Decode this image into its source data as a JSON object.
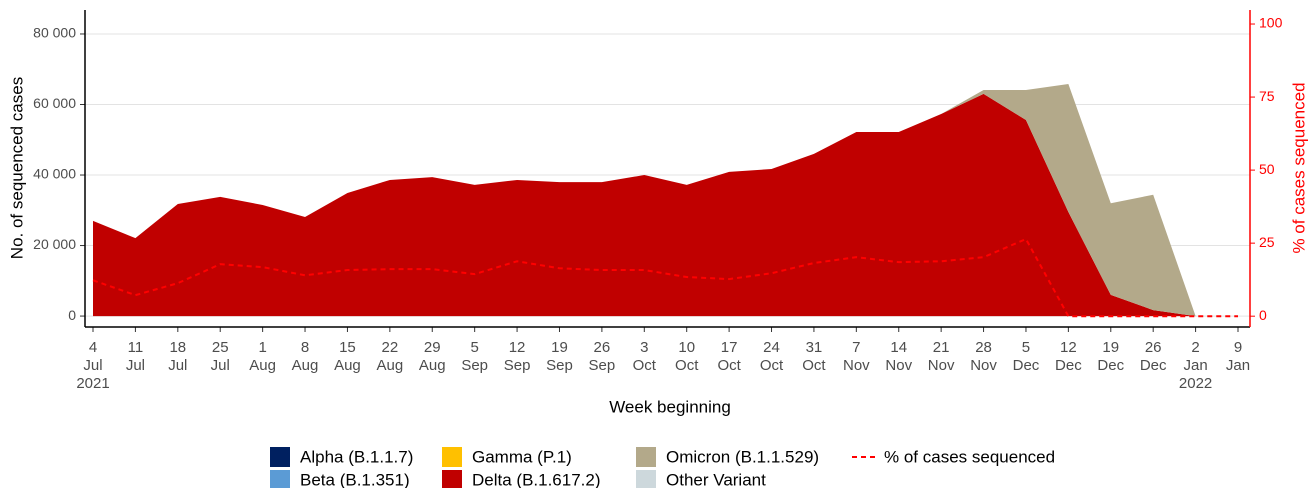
{
  "chart_data": {
    "type": "area",
    "stacked": true,
    "xlabel": "Week beginning",
    "ylabel": "No. of sequenced cases",
    "y2label": "% of cases sequenced",
    "categories": [
      "4 Jul 2021",
      "11 Jul",
      "18 Jul",
      "25 Jul",
      "1 Aug",
      "8 Aug",
      "15 Aug",
      "22 Aug",
      "29 Aug",
      "5 Sep",
      "12 Sep",
      "19 Sep",
      "26 Sep",
      "3 Oct",
      "10 Oct",
      "17 Oct",
      "24 Oct",
      "31 Oct",
      "7 Nov",
      "14 Nov",
      "21 Nov",
      "28 Nov",
      "5 Dec",
      "12 Dec",
      "19 Dec",
      "26 Dec",
      "2 Jan 2022",
      "9 Jan"
    ],
    "ylim": [
      -3100,
      86800
    ],
    "yticks": [
      {
        "value": 0,
        "label": "0"
      },
      {
        "value": 20000,
        "label": "20 000"
      },
      {
        "value": 40000,
        "label": "40 000"
      },
      {
        "value": 60000,
        "label": "60 000"
      },
      {
        "value": 80000,
        "label": "80 000"
      }
    ],
    "y2lim": [
      -3.7,
      104.8
    ],
    "y2ticks": [
      0,
      25,
      50,
      75,
      100
    ],
    "y2color": "#ff0000",
    "grid": true,
    "series": [
      {
        "name": "Alpha (B.1.1.7)",
        "color": "#002060",
        "values": [
          0,
          0,
          0,
          0,
          0,
          0,
          0,
          0,
          0,
          0,
          0,
          0,
          0,
          0,
          0,
          0,
          0,
          0,
          0,
          0,
          0,
          0,
          0,
          0,
          0,
          0,
          0,
          null
        ]
      },
      {
        "name": "Beta (B.1.351)",
        "color": "#5b9bd5",
        "values": [
          0,
          0,
          0,
          0,
          0,
          0,
          0,
          0,
          0,
          0,
          0,
          0,
          0,
          0,
          0,
          0,
          0,
          0,
          0,
          0,
          0,
          0,
          0,
          0,
          0,
          0,
          0,
          null
        ]
      },
      {
        "name": "Gamma (P.1)",
        "color": "#ffc000",
        "values": [
          0,
          0,
          0,
          0,
          0,
          0,
          0,
          0,
          0,
          0,
          0,
          0,
          0,
          0,
          0,
          0,
          0,
          0,
          0,
          0,
          0,
          0,
          0,
          0,
          0,
          0,
          0,
          null
        ]
      },
      {
        "name": "Delta (B.1.617.2)",
        "color": "#c00000",
        "values": [
          27000,
          22100,
          31800,
          33800,
          31500,
          28100,
          34900,
          38600,
          39400,
          37200,
          38600,
          38000,
          38000,
          40000,
          37200,
          40900,
          41700,
          46000,
          52200,
          52200,
          57300,
          63000,
          55600,
          29500,
          6000,
          1700,
          0,
          null
        ]
      },
      {
        "name": "Omicron (B.1.1.529)",
        "color": "#b3a98a",
        "values": [
          0,
          0,
          0,
          0,
          0,
          0,
          0,
          0,
          0,
          0,
          0,
          0,
          0,
          0,
          0,
          0,
          0,
          0,
          0,
          0,
          0,
          1100,
          8500,
          36300,
          26000,
          32700,
          0,
          null
        ]
      },
      {
        "name": "Other Variant",
        "color": "#cdd8dc",
        "values": [
          0,
          0,
          0,
          0,
          0,
          0,
          0,
          0,
          0,
          0,
          0,
          0,
          0,
          0,
          0,
          0,
          0,
          0,
          0,
          0,
          0,
          0,
          0,
          0,
          0,
          0,
          0,
          null
        ]
      },
      {
        "name": "% of cases sequenced",
        "color": "#ff0000",
        "type": "line",
        "dashed": true,
        "axis": "y2",
        "values": [
          12.3,
          7.2,
          11.3,
          17.8,
          16.8,
          14.0,
          15.8,
          16.1,
          16.1,
          14.4,
          18.8,
          16.4,
          15.8,
          15.8,
          13.4,
          12.7,
          14.7,
          18.2,
          20.2,
          18.5,
          18.8,
          20.2,
          26.4,
          0,
          0,
          0,
          0,
          0
        ]
      }
    ]
  }
}
